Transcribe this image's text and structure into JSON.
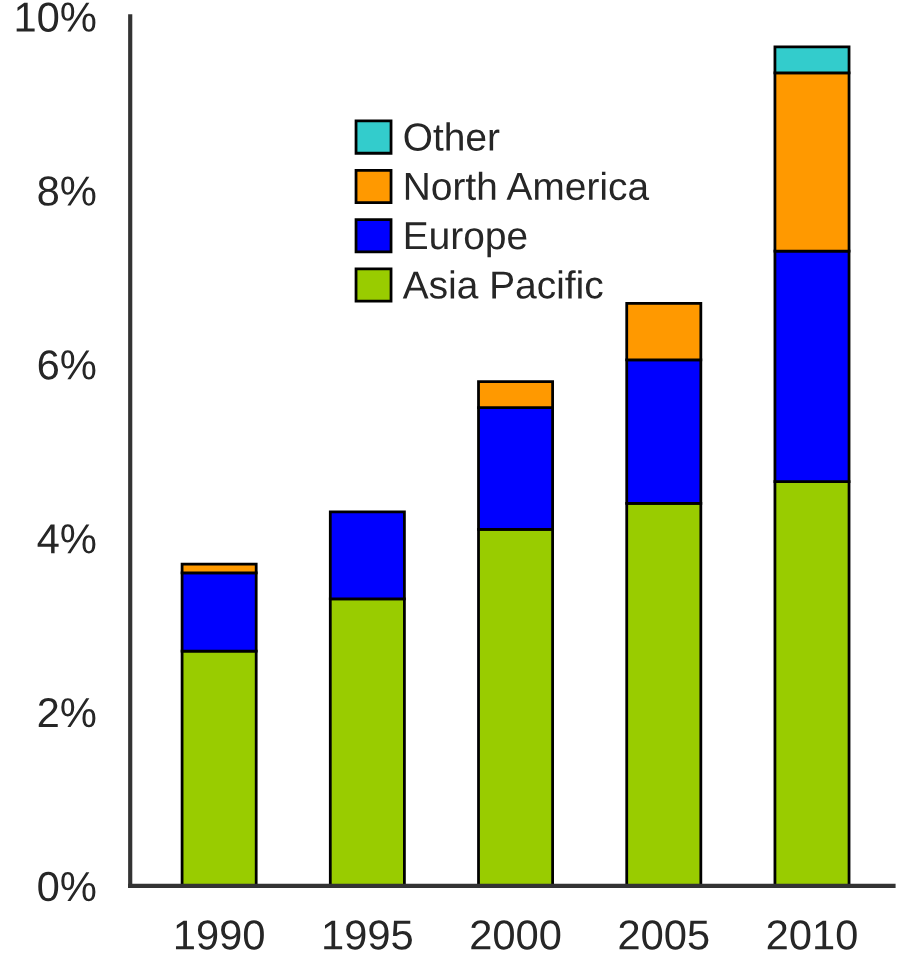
{
  "chart_data": {
    "type": "bar",
    "stacked": true,
    "categories": [
      "1990",
      "1995",
      "2000",
      "2005",
      "2010"
    ],
    "series": [
      {
        "name": "Asia Pacific",
        "color": "#99cc00",
        "values": [
          2.7,
          3.3,
          4.1,
          4.4,
          4.65
        ]
      },
      {
        "name": "Europe",
        "color": "#0000ff",
        "values": [
          0.9,
          1.0,
          1.4,
          1.65,
          2.65
        ]
      },
      {
        "name": "North America",
        "color": "#ff9900",
        "values": [
          0.1,
          0,
          0.3,
          0.65,
          2.05
        ]
      },
      {
        "name": "Other",
        "color": "#33cccc",
        "values": [
          0,
          0,
          0,
          0,
          0.3
        ]
      }
    ],
    "ylim": [
      0,
      10
    ],
    "yticks": [
      {
        "value": 0,
        "label": "0%"
      },
      {
        "value": 2,
        "label": "2%"
      },
      {
        "value": 4,
        "label": "4%"
      },
      {
        "value": 6,
        "label": "6%"
      },
      {
        "value": 8,
        "label": "8%"
      },
      {
        "value": 10,
        "label": "10%"
      }
    ],
    "grid": false,
    "legend": "top left"
  }
}
